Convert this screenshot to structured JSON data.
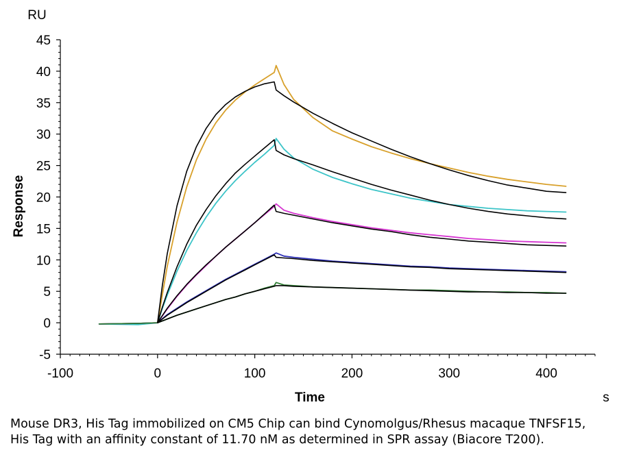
{
  "chart_data": {
    "type": "line",
    "ylabel": "Response",
    "xlabel": "Time",
    "y_unit": "RU",
    "x_unit": "s",
    "xlim": [
      -100,
      450
    ],
    "ylim": [
      -5,
      45
    ],
    "x_ticks": [
      -100,
      0,
      100,
      200,
      300,
      400
    ],
    "y_ticks": [
      -5,
      0,
      5,
      10,
      15,
      20,
      25,
      30,
      35,
      40,
      45
    ],
    "grid": false,
    "series": [
      {
        "color": "#D8A02A",
        "x": [
          -60,
          -20,
          0,
          5,
          10,
          20,
          30,
          40,
          50,
          60,
          70,
          80,
          90,
          100,
          110,
          120,
          122,
          130,
          140,
          160,
          180,
          200,
          220,
          240,
          260,
          280,
          300,
          320,
          340,
          360,
          380,
          400,
          420
        ],
        "y": [
          -0.2,
          -0.1,
          0,
          4.5,
          9,
          16,
          21.6,
          25.9,
          29.2,
          31.8,
          33.8,
          35.4,
          36.7,
          37.8,
          38.8,
          39.8,
          40.9,
          37.9,
          35.5,
          32.6,
          30.5,
          29.2,
          28,
          27,
          26.1,
          25.3,
          24.6,
          23.9,
          23.3,
          22.8,
          22.4,
          22,
          21.7
        ]
      },
      {
        "color": "#3CC4C8",
        "x": [
          -60,
          -20,
          0,
          5,
          10,
          20,
          30,
          40,
          50,
          60,
          70,
          80,
          90,
          100,
          110,
          120,
          122,
          130,
          140,
          160,
          180,
          200,
          220,
          240,
          260,
          280,
          300,
          320,
          340,
          360,
          380,
          400,
          420
        ],
        "y": [
          -0.2,
          -0.3,
          0,
          2.3,
          4.4,
          8.2,
          11.5,
          14.3,
          16.8,
          19,
          20.9,
          22.6,
          24.1,
          25.5,
          26.8,
          28.2,
          29.3,
          27.6,
          26.2,
          24.4,
          23.1,
          22.1,
          21.2,
          20.5,
          19.8,
          19.3,
          18.8,
          18.5,
          18.2,
          18,
          17.8,
          17.7,
          17.6
        ]
      },
      {
        "color": "#D534D0",
        "x": [
          -60,
          -20,
          0,
          5,
          10,
          20,
          30,
          40,
          50,
          60,
          70,
          80,
          90,
          100,
          110,
          120,
          122,
          130,
          140,
          160,
          180,
          200,
          220,
          240,
          260,
          280,
          300,
          320,
          340,
          360,
          380,
          400,
          420
        ],
        "y": [
          -0.2,
          -0.1,
          0,
          1.1,
          2.2,
          4.2,
          6,
          7.6,
          9.1,
          10.6,
          12,
          13.3,
          14.6,
          15.9,
          17.2,
          18.5,
          18.9,
          17.9,
          17.4,
          16.7,
          16.1,
          15.6,
          15.1,
          14.7,
          14.3,
          14,
          13.7,
          13.4,
          13.2,
          13,
          12.9,
          12.8,
          12.7
        ]
      },
      {
        "color": "#2D2FB6",
        "x": [
          -60,
          -20,
          0,
          10,
          20,
          30,
          40,
          50,
          60,
          70,
          80,
          90,
          100,
          110,
          120,
          122,
          130,
          140,
          160,
          180,
          200,
          220,
          240,
          260,
          280,
          300,
          320,
          340,
          360,
          380,
          400,
          420
        ],
        "y": [
          -0.2,
          -0.1,
          0,
          1.3,
          2.3,
          3.3,
          4.2,
          5.1,
          6,
          6.9,
          7.7,
          8.5,
          9.3,
          10.1,
          10.9,
          11.1,
          10.6,
          10.4,
          10.1,
          9.8,
          9.6,
          9.4,
          9.2,
          9,
          8.9,
          8.7,
          8.6,
          8.5,
          8.4,
          8.3,
          8.2,
          8.1
        ]
      },
      {
        "color": "#2E7D32",
        "x": [
          -60,
          -20,
          0,
          10,
          20,
          30,
          40,
          50,
          60,
          70,
          80,
          90,
          100,
          110,
          120,
          122,
          130,
          140,
          160,
          180,
          200,
          220,
          240,
          260,
          280,
          300,
          320,
          340,
          360,
          380,
          400,
          420
        ],
        "y": [
          -0.2,
          -0.1,
          0,
          0.6,
          1.2,
          1.7,
          2.2,
          2.7,
          3.2,
          3.7,
          4.1,
          4.6,
          5,
          5.5,
          5.9,
          6.4,
          6,
          5.9,
          5.7,
          5.6,
          5.5,
          5.4,
          5.3,
          5.2,
          5.2,
          5.1,
          5,
          4.9,
          4.9,
          4.8,
          4.8,
          4.7
        ]
      },
      {
        "color": "#000000",
        "x": [
          0,
          5,
          10,
          20,
          30,
          40,
          50,
          60,
          70,
          80,
          90,
          100,
          110,
          120,
          122,
          130,
          140,
          160,
          180,
          200,
          220,
          240,
          260,
          280,
          300,
          320,
          340,
          360,
          380,
          400,
          420
        ],
        "y": [
          0,
          6,
          11,
          18.6,
          24.1,
          28,
          30.9,
          33.1,
          34.7,
          35.9,
          36.8,
          37.5,
          38,
          38.3,
          37,
          36.1,
          35.1,
          33.3,
          31.7,
          30.2,
          28.9,
          27.6,
          26.4,
          25.3,
          24.3,
          23.4,
          22.6,
          21.9,
          21.4,
          20.9,
          20.7
        ]
      },
      {
        "color": "#000000",
        "x": [
          0,
          5,
          10,
          20,
          30,
          40,
          50,
          60,
          70,
          80,
          90,
          100,
          110,
          120,
          122,
          130,
          140,
          160,
          180,
          200,
          220,
          240,
          260,
          280,
          300,
          320,
          340,
          360,
          380,
          400,
          420
        ],
        "y": [
          0,
          2.5,
          4.8,
          8.9,
          12.5,
          15.5,
          18,
          20.2,
          22.1,
          23.8,
          25.2,
          26.5,
          27.8,
          29.1,
          27.4,
          26.7,
          26.1,
          25.1,
          24,
          23,
          22,
          21.1,
          20.3,
          19.5,
          18.8,
          18.2,
          17.7,
          17.3,
          17,
          16.7,
          16.5
        ]
      },
      {
        "color": "#000000",
        "x": [
          0,
          10,
          20,
          30,
          40,
          50,
          60,
          70,
          80,
          90,
          100,
          110,
          120,
          122,
          130,
          140,
          160,
          180,
          200,
          220,
          240,
          260,
          280,
          300,
          320,
          340,
          360,
          380,
          400,
          420
        ],
        "y": [
          0,
          2.3,
          4.3,
          6.1,
          7.7,
          9.2,
          10.6,
          12,
          13.3,
          14.6,
          15.9,
          17.3,
          18.7,
          17.7,
          17.4,
          17.1,
          16.5,
          15.9,
          15.4,
          14.9,
          14.5,
          14,
          13.6,
          13.3,
          13,
          12.8,
          12.6,
          12.4,
          12.3,
          12.2
        ]
      },
      {
        "color": "#000000",
        "x": [
          0,
          10,
          20,
          30,
          40,
          50,
          60,
          70,
          80,
          90,
          100,
          110,
          120,
          122,
          130,
          140,
          160,
          180,
          200,
          220,
          240,
          260,
          280,
          300,
          320,
          340,
          360,
          380,
          400,
          420
        ],
        "y": [
          0,
          1.2,
          2.2,
          3.2,
          4.1,
          5,
          5.9,
          6.8,
          7.6,
          8.4,
          9.2,
          10,
          10.8,
          10.4,
          10.3,
          10.2,
          9.9,
          9.7,
          9.5,
          9.3,
          9.1,
          8.9,
          8.8,
          8.6,
          8.5,
          8.4,
          8.3,
          8.2,
          8.1,
          8
        ]
      },
      {
        "color": "#000000",
        "x": [
          0,
          10,
          20,
          30,
          40,
          50,
          60,
          70,
          80,
          90,
          100,
          110,
          120,
          122,
          130,
          140,
          160,
          180,
          200,
          220,
          240,
          260,
          280,
          300,
          320,
          340,
          360,
          380,
          400,
          420
        ],
        "y": [
          0,
          0.6,
          1.2,
          1.7,
          2.2,
          2.7,
          3.2,
          3.7,
          4.1,
          4.6,
          5,
          5.4,
          5.8,
          5.9,
          5.9,
          5.8,
          5.7,
          5.6,
          5.5,
          5.4,
          5.3,
          5.2,
          5.1,
          5,
          4.9,
          4.9,
          4.8,
          4.8,
          4.7,
          4.7
        ]
      }
    ]
  },
  "caption": "Mouse DR3, His Tag immobilized on CM5 Chip can bind Cynomolgus/Rhesus macaque TNFSF15, His Tag with an affinity constant of 11.70 nM as determined in SPR assay (Biacore T200)."
}
